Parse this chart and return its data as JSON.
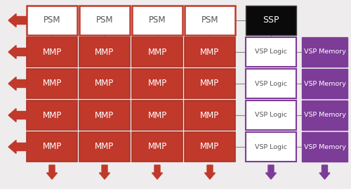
{
  "bg_color": "#eeecec",
  "psm_color": "#ffffff",
  "psm_border_color": "#c0392b",
  "psm_text_color": "#555555",
  "ssp_color": "#0a0a0a",
  "ssp_text_color": "#ffffff",
  "mmp_color": "#c0392b",
  "mmp_text_color": "#ffffff",
  "vsp_logic_color": "#ffffff",
  "vsp_logic_border_color": "#7d3c98",
  "vsp_logic_text_color": "#555555",
  "vsp_memory_color": "#7d3c98",
  "vsp_memory_text_color": "#ffffff",
  "arrow_color_red": "#c0392b",
  "arrow_color_purple": "#7d3c98",
  "psm_labels": [
    "PSM",
    "PSM",
    "PSM",
    "PSM"
  ],
  "mmp_label": "MMP",
  "vsp_logic_label": "VSP Logic",
  "vsp_memory_label": "VSP Memory",
  "ssp_label": "SSP"
}
